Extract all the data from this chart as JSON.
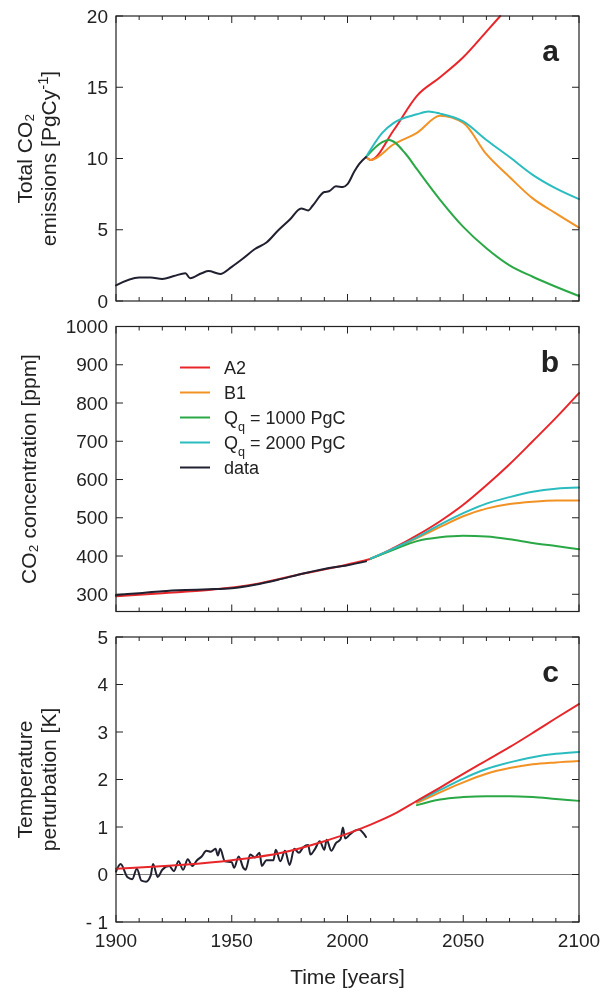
{
  "chart_data": [
    {
      "type": "line",
      "ylabel": "Total CO₂\nemissions [PgCy$^{-1}$]",
      "xlim": [
        1900,
        2100
      ],
      "ylim": [
        0,
        20
      ],
      "tick_labels": "y",
      "annotations": [
        "a"
      ],
      "xticks": [
        1900,
        {
          "value": 1910,
          "label": null
        },
        {
          "value": 1920,
          "label": null
        },
        {
          "value": 1930,
          "label": null
        },
        {
          "value": 1940,
          "label": null
        },
        1950,
        {
          "value": 1960,
          "label": null
        },
        {
          "value": 1970,
          "label": null
        },
        {
          "value": 1980,
          "label": null
        },
        {
          "value": 1990,
          "label": null
        },
        2000,
        {
          "value": 2010,
          "label": null
        },
        {
          "value": 2020,
          "label": null
        },
        {
          "value": 2030,
          "label": null
        },
        {
          "value": 2040,
          "label": null
        },
        2050,
        {
          "value": 2060,
          "label": null
        },
        {
          "value": 2070,
          "label": null
        },
        {
          "value": 2080,
          "label": null
        },
        {
          "value": 2090,
          "label": null
        },
        2100
      ],
      "yticks": [
        0,
        5,
        10,
        15,
        20
      ],
      "series": [
        {
          "color": "#e8262a",
          "x": [
            2008,
            2010,
            2020,
            2030,
            2040,
            2050,
            2060,
            2066
          ],
          "values": [
            10.1,
            9.9,
            12.0,
            14.4,
            15.7,
            17.1,
            18.9,
            20.0
          ]
        },
        {
          "color": "#f39224",
          "x": [
            2008,
            2010,
            2020,
            2030,
            2040,
            2050,
            2060,
            2070,
            2080,
            2090,
            2100
          ],
          "values": [
            10.1,
            9.9,
            11.0,
            11.8,
            13.0,
            12.5,
            10.3,
            8.7,
            7.2,
            6.15,
            5.15
          ]
        },
        {
          "color": "#2aa846",
          "x": [
            2008,
            2015,
            2018,
            2025,
            2030,
            2040,
            2050,
            2060,
            2070,
            2080,
            2090,
            2100
          ],
          "values": [
            10.1,
            11.15,
            11.3,
            10.35,
            9.25,
            7.1,
            5.2,
            3.7,
            2.5,
            1.7,
            1.0,
            0.35
          ]
        },
        {
          "color": "#2bbcc0",
          "x": [
            2008,
            2015,
            2020,
            2030,
            2035,
            2040,
            2050,
            2060,
            2070,
            2080,
            2090,
            2100
          ],
          "values": [
            10.1,
            11.8,
            12.5,
            13.1,
            13.3,
            13.15,
            12.6,
            11.3,
            10.1,
            8.85,
            7.9,
            7.15
          ]
        },
        {
          "color": "#202030",
          "x": [
            1900,
            1910,
            1915,
            1920,
            1925,
            1930,
            1932,
            1937,
            1940,
            1945,
            1950,
            1955,
            1960,
            1965,
            1970,
            1975,
            1980,
            1983,
            1985,
            1990,
            1992,
            1995,
            1998,
            2000,
            2003,
            2005,
            2008
          ],
          "values": [
            1.1,
            1.65,
            1.65,
            1.55,
            1.75,
            1.95,
            1.6,
            1.95,
            2.1,
            1.9,
            2.4,
            3.0,
            3.65,
            4.1,
            4.95,
            5.7,
            6.5,
            6.35,
            6.7,
            7.65,
            7.7,
            8.05,
            8.0,
            8.2,
            9.1,
            9.6,
            10.1
          ]
        }
      ]
    },
    {
      "type": "line",
      "ylabel": "CO₂ concentration [ppm]",
      "xlim": [
        1900,
        2100
      ],
      "ylim": [
        255,
        1000
      ],
      "tick_labels": "y",
      "annotations": [
        "b"
      ],
      "legend": "top left",
      "xticks": [
        1900,
        {
          "value": 1910,
          "label": null
        },
        {
          "value": 1920,
          "label": null
        },
        {
          "value": 1930,
          "label": null
        },
        {
          "value": 1940,
          "label": null
        },
        1950,
        {
          "value": 1960,
          "label": null
        },
        {
          "value": 1970,
          "label": null
        },
        {
          "value": 1980,
          "label": null
        },
        {
          "value": 1990,
          "label": null
        },
        2000,
        {
          "value": 2010,
          "label": null
        },
        {
          "value": 2020,
          "label": null
        },
        {
          "value": 2030,
          "label": null
        },
        {
          "value": 2040,
          "label": null
        },
        2050,
        {
          "value": 2060,
          "label": null
        },
        {
          "value": 2070,
          "label": null
        },
        {
          "value": 2080,
          "label": null
        },
        {
          "value": 2090,
          "label": null
        },
        2100
      ],
      "yticks": [
        300,
        400,
        500,
        600,
        700,
        800,
        900,
        1000
      ],
      "series": [
        {
          "name": "A2",
          "color": "#e8262a",
          "x": [
            1900,
            1920,
            1940,
            1960,
            1980,
            2000,
            2010,
            2020,
            2030,
            2040,
            2050,
            2060,
            2070,
            2080,
            2090,
            2100
          ],
          "values": [
            295,
            303,
            311,
            326,
            353,
            378,
            393,
            421,
            454,
            491,
            534,
            585,
            640,
            700,
            761,
            826
          ]
        },
        {
          "name": "B1",
          "color": "#f39224",
          "x": [
            2010,
            2020,
            2030,
            2040,
            2050,
            2060,
            2070,
            2080,
            2090,
            2100
          ],
          "values": [
            393,
            419,
            447,
            476,
            504,
            524,
            536,
            542,
            545,
            545
          ]
        },
        {
          "name": "Q$_{q}$ = 1000 PgC",
          "color": "#2aa846",
          "x": [
            2010,
            2020,
            2030,
            2040,
            2050,
            2060,
            2070,
            2080,
            2090,
            2100
          ],
          "values": [
            393,
            417,
            439,
            449,
            453,
            451,
            444,
            434,
            426,
            418
          ]
        },
        {
          "name": "Q$_{q}$ = 2000 PgC",
          "color": "#2bbcc0",
          "x": [
            2010,
            2020,
            2030,
            2040,
            2050,
            2060,
            2070,
            2080,
            2090,
            2100
          ],
          "values": [
            393,
            420,
            449,
            482,
            512,
            537,
            554,
            568,
            576,
            579
          ]
        },
        {
          "name": "data",
          "color": "#202030",
          "x": [
            1900,
            1910,
            1920,
            1930,
            1940,
            1950,
            1960,
            1970,
            1980,
            1990,
            2000,
            2008
          ],
          "values": [
            298,
            303,
            308,
            311,
            313,
            316,
            325,
            338,
            353,
            366,
            376,
            386
          ]
        }
      ]
    },
    {
      "type": "line",
      "ylabel": "Temperature\nperturbation [K]",
      "xlabel": "Time [years]",
      "xlim": [
        1900,
        2100
      ],
      "ylim": [
        -1,
        5
      ],
      "annotations": [
        "c"
      ],
      "xticks": [
        1900,
        {
          "value": 1910,
          "label": null
        },
        {
          "value": 1920,
          "label": null
        },
        {
          "value": 1930,
          "label": null
        },
        {
          "value": 1940,
          "label": null
        },
        1950,
        {
          "value": 1960,
          "label": null
        },
        {
          "value": 1970,
          "label": null
        },
        {
          "value": 1980,
          "label": null
        },
        {
          "value": 1990,
          "label": null
        },
        2000,
        {
          "value": 2010,
          "label": null
        },
        {
          "value": 2020,
          "label": null
        },
        {
          "value": 2030,
          "label": null
        },
        {
          "value": 2040,
          "label": null
        },
        2050,
        {
          "value": 2060,
          "label": null
        },
        {
          "value": 2070,
          "label": null
        },
        {
          "value": 2080,
          "label": null
        },
        {
          "value": 2090,
          "label": null
        },
        2100
      ],
      "yticks": [
        {
          "value": -1,
          "label": "- 1"
        },
        0,
        1,
        2,
        3,
        4,
        5
      ],
      "ref_lines": [
        {
          "axis": "y",
          "value": 0,
          "color": "#808080"
        }
      ],
      "series": [
        {
          "color": "#2aa846",
          "x": [
            2030,
            2040,
            2050,
            2060,
            2070,
            2080,
            2090,
            2100
          ],
          "values": [
            1.46,
            1.58,
            1.63,
            1.65,
            1.65,
            1.63,
            1.59,
            1.55
          ]
        },
        {
          "color": "#f39224",
          "x": [
            2030,
            2040,
            2050,
            2060,
            2070,
            2080,
            2090,
            2100
          ],
          "values": [
            1.51,
            1.73,
            1.94,
            2.12,
            2.24,
            2.32,
            2.36,
            2.39
          ]
        },
        {
          "color": "#2bbcc0",
          "x": [
            2030,
            2040,
            2050,
            2060,
            2070,
            2080,
            2090,
            2100
          ],
          "values": [
            1.54,
            1.78,
            2.02,
            2.22,
            2.36,
            2.47,
            2.54,
            2.58
          ]
        },
        {
          "color": "#202030",
          "x": [
            1900,
            1902,
            1905,
            1907,
            1909,
            1911,
            1913,
            1915,
            1916,
            1918,
            1920,
            1923,
            1925,
            1927,
            1929,
            1931,
            1933,
            1935,
            1937,
            1939,
            1941,
            1943,
            1944,
            1945,
            1947,
            1950,
            1951,
            1953,
            1955,
            1956,
            1958,
            1960,
            1962,
            1963,
            1965,
            1968,
            1969,
            1971,
            1973,
            1975,
            1977,
            1979,
            1981,
            1983,
            1984,
            1986,
            1988,
            1990,
            1991,
            1993,
            1995,
            1997,
            1998,
            1999,
            2001,
            2003,
            2005,
            2007,
            2008
          ],
          "values": [
            0.06,
            0.22,
            -0.06,
            -0.1,
            0.12,
            -0.13,
            -0.15,
            -0.02,
            0.22,
            -0.05,
            0.1,
            0.18,
            0.07,
            0.28,
            0.1,
            0.32,
            0.18,
            0.3,
            0.38,
            0.5,
            0.48,
            0.54,
            0.4,
            0.54,
            0.28,
            0.26,
            0.14,
            0.38,
            0.14,
            0.1,
            0.42,
            0.36,
            0.46,
            0.18,
            0.3,
            0.3,
            0.52,
            0.28,
            0.5,
            0.2,
            0.54,
            0.46,
            0.58,
            0.62,
            0.42,
            0.54,
            0.7,
            0.52,
            0.73,
            0.5,
            0.66,
            0.74,
            0.99,
            0.76,
            0.84,
            0.92,
            0.95,
            0.86,
            0.79
          ]
        },
        {
          "color": "#e8262a",
          "x": [
            1900,
            1950,
            1970,
            1990,
            2000,
            2010,
            2020,
            2030,
            2040,
            2050,
            2060,
            2070,
            2080,
            2090,
            2100
          ],
          "values": [
            0.12,
            0.3,
            0.44,
            0.7,
            0.86,
            1.05,
            1.27,
            1.55,
            1.83,
            2.12,
            2.4,
            2.68,
            2.98,
            3.29,
            3.59
          ]
        }
      ]
    }
  ]
}
